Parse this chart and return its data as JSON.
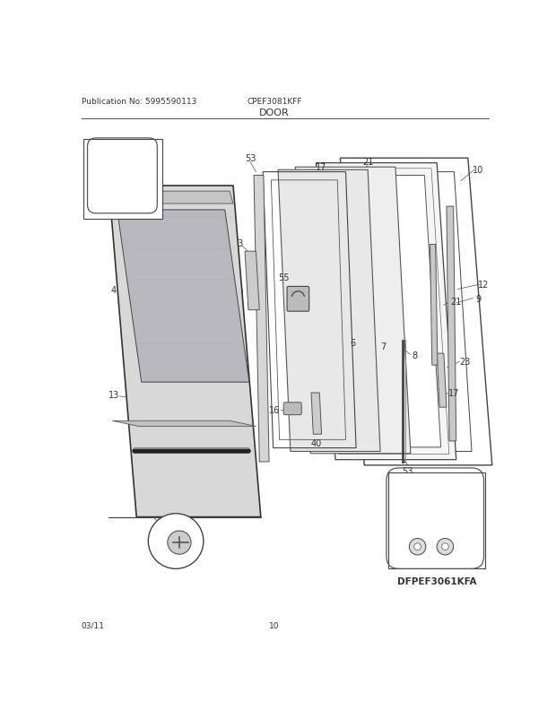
{
  "title": "DOOR",
  "pub_no": "Publication No: 5995590113",
  "model": "CPEF3081KFF",
  "diagram_id": "DFPEF3061KFA",
  "footer_date": "03/11",
  "footer_page": "10",
  "bg_color": "#ffffff",
  "line_color": "#333333"
}
